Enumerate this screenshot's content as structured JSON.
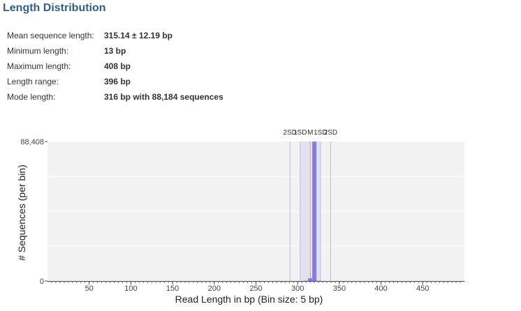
{
  "section_title": "Length Distribution",
  "stats": [
    {
      "label": "Mean sequence length:",
      "value": "315.14 ± 12.19 bp"
    },
    {
      "label": "Minimum length:",
      "value": "13 bp"
    },
    {
      "label": "Maximum length:",
      "value": "408 bp"
    },
    {
      "label": "Length range:",
      "value": "396 bp"
    },
    {
      "label": "Mode length:",
      "value": "316 bp with 88,184 sequences"
    }
  ],
  "chart_data": {
    "type": "bar",
    "xlabel": "Read Length in bp (Bin size: 5 bp)",
    "ylabel": "# Sequences (per bin)",
    "xlim": [
      0,
      500
    ],
    "ylim": [
      0,
      88408
    ],
    "x_ticks": [
      50,
      100,
      150,
      200,
      250,
      300,
      350,
      400,
      450
    ],
    "y_tick_labels": [
      "0",
      "88,408"
    ],
    "bin_size": 5,
    "bars": [
      {
        "x": 310,
        "value": 200
      },
      {
        "x": 315,
        "value": 1800
      },
      {
        "x": 320,
        "value": 88408
      },
      {
        "x": 325,
        "value": 150
      }
    ],
    "stat_lines": [
      {
        "label": "2SD",
        "x": 290.76
      },
      {
        "label": "1SD",
        "x": 302.95
      },
      {
        "label": "M",
        "x": 315.14
      },
      {
        "label": "1SD",
        "x": 327.33
      },
      {
        "label": "2SD",
        "x": 339.52
      }
    ],
    "colors": {
      "bar": "#8080e8",
      "plot_bg": "#f2f2f2",
      "band": "#e2e2ee",
      "stat_line": "#b8b8f0",
      "mean_line": "#d9a0a0"
    },
    "grid": true
  }
}
